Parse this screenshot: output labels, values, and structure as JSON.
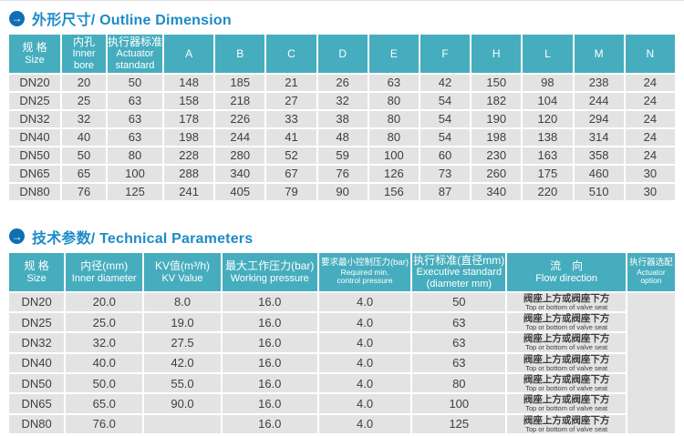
{
  "colors": {
    "header_teal": "#46adbe",
    "title_blue": "#1c8bc6",
    "arrow_circle_blue": "#0f6fb5",
    "row_gray": "#e3e3e3",
    "text_dark": "#3f3f3f"
  },
  "icons": {
    "section_arrow": "→"
  },
  "section1_title": "外形尺寸/ Outline Dimension",
  "section2_title": "技术参数/ Technical Parameters",
  "outline_table": {
    "headers": [
      {
        "lines": [
          "规 格",
          "Size"
        ]
      },
      {
        "lines": [
          "内孔",
          "Inner bore"
        ]
      },
      {
        "lines": [
          "执行器标准",
          "Actuator",
          "standard"
        ]
      }
    ],
    "letter_columns": [
      "A",
      "B",
      "C",
      "D",
      "E",
      "F",
      "H",
      "L",
      "M",
      "N"
    ],
    "rows": [
      [
        "DN20",
        "20",
        "50",
        "148",
        "185",
        "21",
        "26",
        "63",
        "42",
        "150",
        "98",
        "238",
        "24"
      ],
      [
        "DN25",
        "25",
        "63",
        "158",
        "218",
        "27",
        "32",
        "80",
        "54",
        "182",
        "104",
        "244",
        "24"
      ],
      [
        "DN32",
        "32",
        "63",
        "178",
        "226",
        "33",
        "38",
        "80",
        "54",
        "190",
        "120",
        "294",
        "24"
      ],
      [
        "DN40",
        "40",
        "63",
        "198",
        "244",
        "41",
        "48",
        "80",
        "54",
        "198",
        "138",
        "314",
        "24"
      ],
      [
        "DN50",
        "50",
        "80",
        "228",
        "280",
        "52",
        "59",
        "100",
        "60",
        "230",
        "163",
        "358",
        "24"
      ],
      [
        "DN65",
        "65",
        "100",
        "288",
        "340",
        "67",
        "76",
        "126",
        "73",
        "260",
        "175",
        "460",
        "30"
      ],
      [
        "DN80",
        "76",
        "125",
        "241",
        "405",
        "79",
        "90",
        "156",
        "87",
        "340",
        "220",
        "510",
        "30"
      ]
    ]
  },
  "tech_table": {
    "headers": [
      {
        "lines": [
          "规 格",
          "Size"
        ],
        "small": false
      },
      {
        "lines": [
          "内径(mm)",
          "Inner diameter"
        ],
        "small": false
      },
      {
        "lines": [
          "KV值(m³/h)",
          "KV Value"
        ],
        "small": false
      },
      {
        "lines": [
          "最大工作压力(bar)",
          "Working pressure"
        ],
        "small": false
      },
      {
        "lines": [
          "要求最小控制压力(bar)",
          "Required min.",
          "control pressure"
        ],
        "small": true
      },
      {
        "lines": [
          "执行标准(直径mm)",
          "Executive standard",
          "(diameter mm)"
        ],
        "small": false
      },
      {
        "lines": [
          "流　向",
          "Flow direction"
        ],
        "small": false
      },
      {
        "lines": [
          "执行器选配",
          "Actuator",
          "option"
        ],
        "small": true
      }
    ],
    "rows": [
      {
        "values": [
          "DN20",
          "20.0",
          "8.0",
          "16.0",
          "4.0",
          "50"
        ]
      },
      {
        "values": [
          "DN25",
          "25.0",
          "19.0",
          "16.0",
          "4.0",
          "63"
        ]
      },
      {
        "values": [
          "DN32",
          "32.0",
          "27.5",
          "16.0",
          "4.0",
          "63"
        ]
      },
      {
        "values": [
          "DN40",
          "40.0",
          "42.0",
          "16.0",
          "4.0",
          "63"
        ]
      },
      {
        "values": [
          "DN50",
          "50.0",
          "55.0",
          "16.0",
          "4.0",
          "80"
        ]
      },
      {
        "values": [
          "DN65",
          "65.0",
          "90.0",
          "16.0",
          "4.0",
          "100"
        ]
      },
      {
        "values": [
          "DN80",
          "76.0",
          "",
          "16.0",
          "4.0",
          "125"
        ]
      }
    ],
    "flow_cell": {
      "zh": "阀座上方或阀座下方",
      "en": "Top or bottom of valve seat"
    },
    "actuator_option_value": ""
  }
}
